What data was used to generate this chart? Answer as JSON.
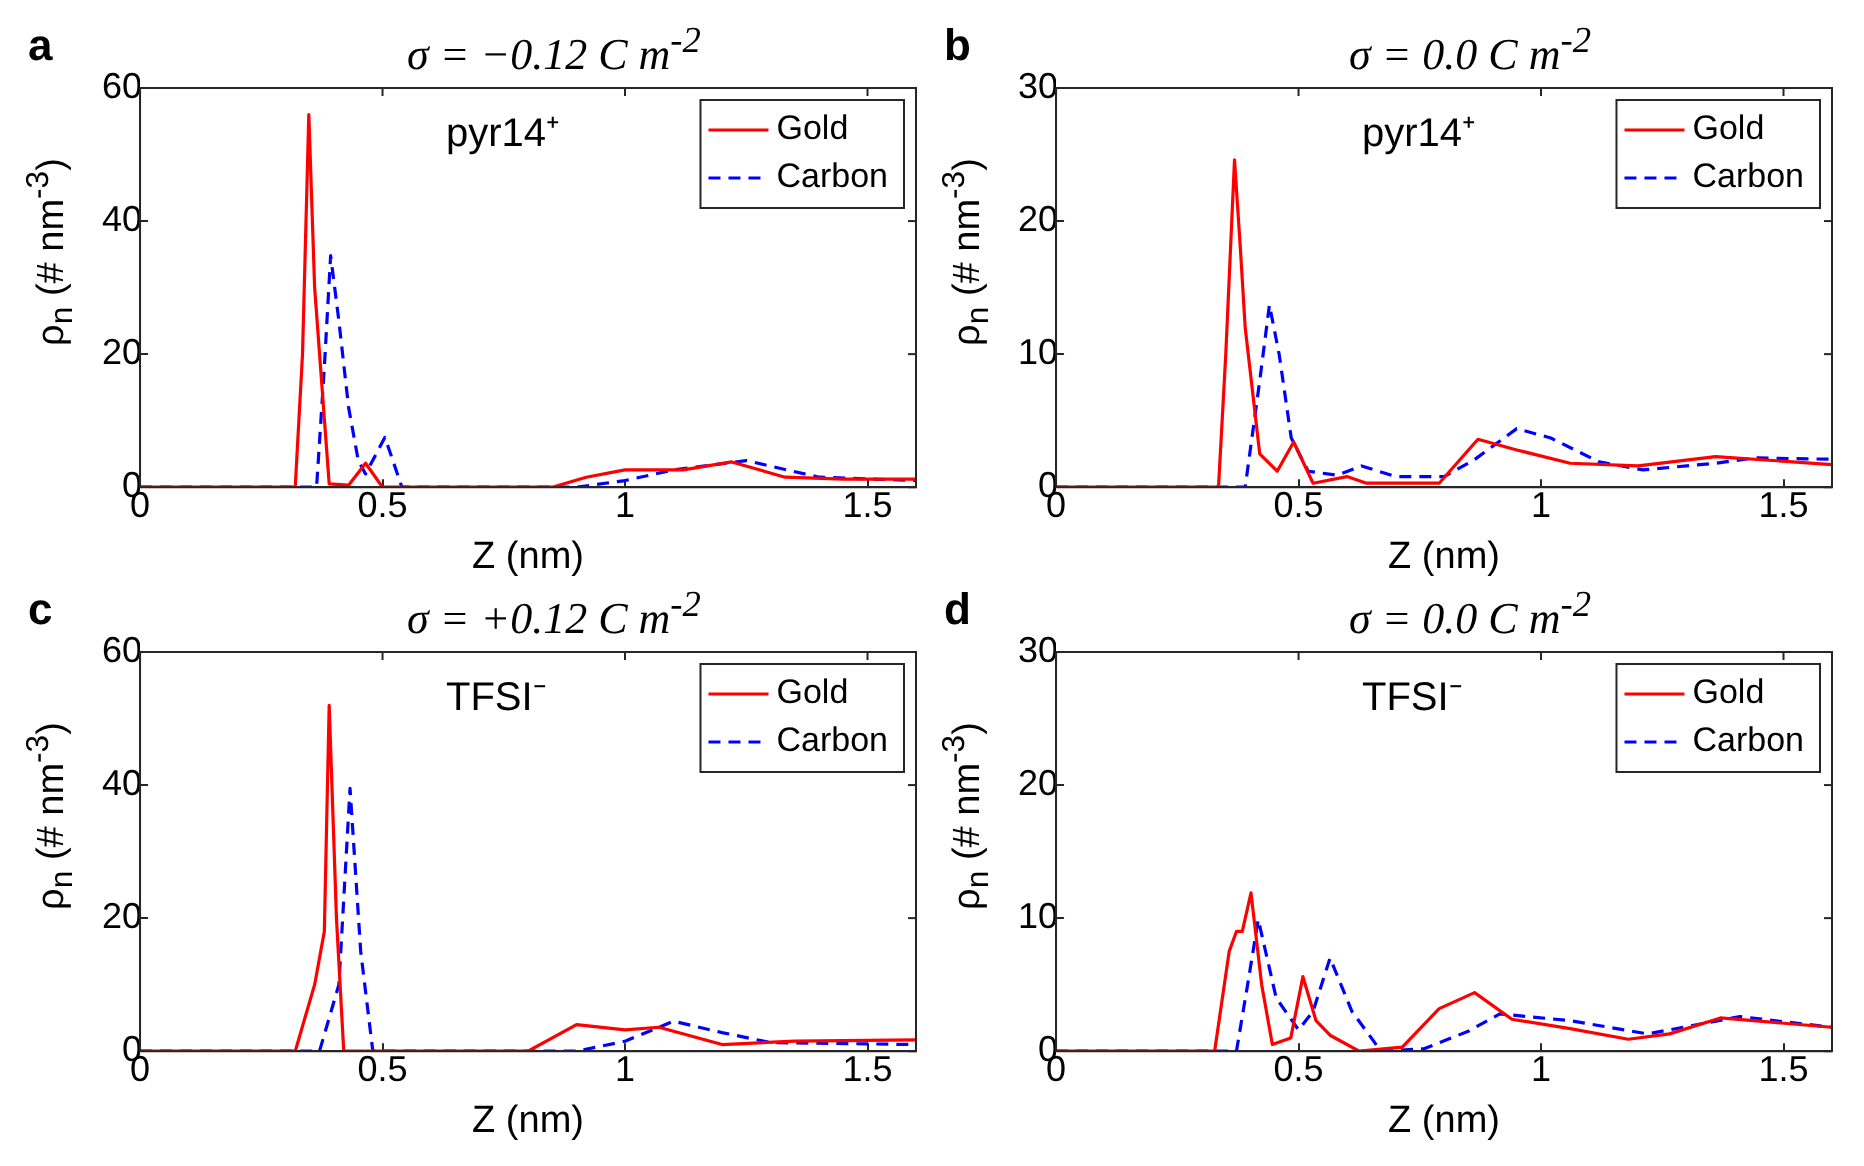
{
  "chart_data": [
    {
      "type": "line",
      "title": "σ = −0.12 C m$^{-2}$",
      "xlabel": "Z (nm)",
      "ylabel": "ρ$_{n}$ (# nm$^{-3}$)",
      "annotations": [
        "a",
        "pyr14⁺"
      ],
      "xlim": [
        0,
        1.6
      ],
      "ylim": [
        0,
        60
      ],
      "xticks": [
        0,
        0.5,
        1,
        1.5
      ],
      "yticks": [
        0,
        20,
        40,
        60
      ],
      "grid": false,
      "legend": "top right",
      "series": [
        {
          "name": "Gold",
          "color": "#ff0000",
          "line_style": "solid",
          "x": [
            0,
            0.32,
            0.335,
            0.348,
            0.36,
            0.39,
            0.43,
            0.465,
            0.5,
            0.85,
            0.92,
            1.0,
            1.12,
            1.22,
            1.33,
            1.45,
            1.6
          ],
          "values": [
            0,
            0,
            20,
            56,
            30,
            0.5,
            0.3,
            3.6,
            0,
            0,
            1.5,
            2.6,
            2.6,
            3.8,
            1.5,
            1.2,
            1.2
          ]
        },
        {
          "name": "Carbon",
          "color": "#0000ff",
          "line_style": "dashed",
          "x": [
            0,
            0.364,
            0.38,
            0.393,
            0.41,
            0.43,
            0.45,
            0.465,
            0.505,
            0.54,
            0.9,
            1.0,
            1.1,
            1.25,
            1.4,
            1.6
          ],
          "values": [
            0,
            0,
            18,
            34.8,
            25,
            12,
            4,
            2,
            7.5,
            0,
            0,
            1.0,
            2.6,
            4.0,
            1.5,
            1.0
          ]
        }
      ]
    },
    {
      "type": "line",
      "title": "σ = 0.0 C m$^{-2}$",
      "xlabel": "Z (nm)",
      "ylabel": "ρ$_{n}$ (# nm$^{-3}$)",
      "annotations": [
        "b",
        "pyr14⁺"
      ],
      "xlim": [
        0,
        1.6
      ],
      "ylim": [
        0,
        30
      ],
      "xticks": [
        0,
        0.5,
        1,
        1.5
      ],
      "yticks": [
        0,
        10,
        20,
        30
      ],
      "grid": false,
      "legend": "top right",
      "series": [
        {
          "name": "Gold",
          "color": "#ff0000",
          "line_style": "solid",
          "x": [
            0,
            0.335,
            0.35,
            0.368,
            0.38,
            0.39,
            0.42,
            0.456,
            0.49,
            0.53,
            0.6,
            0.64,
            0.79,
            0.87,
            0.95,
            1.06,
            1.2,
            1.36,
            1.6
          ],
          "values": [
            0,
            0,
            10,
            24.6,
            18,
            12,
            2.5,
            1.2,
            3.4,
            0.3,
            0.8,
            0.3,
            0.3,
            3.6,
            2.8,
            1.8,
            1.6,
            2.3,
            1.7
          ]
        },
        {
          "name": "Carbon",
          "color": "#0000ff",
          "line_style": "dashed",
          "x": [
            0,
            0.39,
            0.42,
            0.44,
            0.46,
            0.485,
            0.52,
            0.58,
            0.63,
            0.7,
            0.8,
            0.86,
            0.95,
            1.02,
            1.12,
            1.21,
            1.36,
            1.44,
            1.6
          ],
          "values": [
            0,
            0,
            8,
            13.7,
            10,
            3.7,
            1.2,
            0.9,
            1.6,
            0.8,
            0.8,
            2.0,
            4.4,
            3.7,
            1.9,
            1.3,
            1.8,
            2.2,
            2.1
          ]
        }
      ]
    },
    {
      "type": "line",
      "title": "σ = +0.12 C m$^{-2}$",
      "xlabel": "Z (nm)",
      "ylabel": "ρ$_{n}$ (# nm$^{-3}$)",
      "annotations": [
        "c",
        "TFSI⁻"
      ],
      "xlim": [
        0,
        1.6
      ],
      "ylim": [
        0,
        60
      ],
      "xticks": [
        0,
        0.5,
        1,
        1.5
      ],
      "yticks": [
        0,
        20,
        40,
        60
      ],
      "grid": false,
      "legend": "top right",
      "series": [
        {
          "name": "Gold",
          "color": "#ff0000",
          "line_style": "solid",
          "x": [
            0,
            0.32,
            0.36,
            0.38,
            0.39,
            0.405,
            0.42,
            0.8,
            0.9,
            1.0,
            1.07,
            1.2,
            1.35,
            1.6
          ],
          "values": [
            0,
            0,
            10,
            18,
            52,
            20,
            0,
            0,
            4,
            3.2,
            3.6,
            1.0,
            1.5,
            1.7
          ]
        },
        {
          "name": "Carbon",
          "color": "#0000ff",
          "line_style": "dashed",
          "x": [
            0,
            0.37,
            0.41,
            0.433,
            0.455,
            0.48,
            0.9,
            1.0,
            1.1,
            1.2,
            1.3,
            1.6
          ],
          "values": [
            0,
            0,
            10,
            39.5,
            15,
            0,
            0,
            1.5,
            4.5,
            2.8,
            1.3,
            1.0
          ]
        }
      ]
    },
    {
      "type": "line",
      "title": "σ = 0.0 C m$^{-2}$",
      "xlabel": "Z (nm)",
      "ylabel": "ρ$_{n}$ (# nm$^{-3}$)",
      "annotations": [
        "d",
        "TFSI⁻"
      ],
      "xlim": [
        0,
        1.6
      ],
      "ylim": [
        0,
        30
      ],
      "xticks": [
        0,
        0.5,
        1,
        1.5
      ],
      "yticks": [
        0,
        10,
        20,
        30
      ],
      "grid": false,
      "legend": "top right",
      "series": [
        {
          "name": "Gold",
          "color": "#ff0000",
          "line_style": "solid",
          "x": [
            0,
            0.327,
            0.357,
            0.372,
            0.384,
            0.402,
            0.424,
            0.446,
            0.484,
            0.509,
            0.536,
            0.565,
            0.625,
            0.714,
            0.79,
            0.863,
            0.94,
            1.06,
            1.18,
            1.265,
            1.37,
            1.6
          ],
          "values": [
            0,
            0,
            7.5,
            9,
            9,
            11.9,
            5,
            0.5,
            1.0,
            5.6,
            2.3,
            1.2,
            0,
            0.3,
            3.2,
            4.4,
            2.4,
            1.7,
            0.9,
            1.3,
            2.5,
            1.8
          ]
        },
        {
          "name": "Carbon",
          "color": "#0000ff",
          "line_style": "dashed",
          "x": [
            0,
            0.372,
            0.395,
            0.417,
            0.454,
            0.5,
            0.53,
            0.565,
            0.61,
            0.67,
            0.76,
            0.85,
            0.915,
            1.06,
            1.22,
            1.41,
            1.6
          ],
          "values": [
            0,
            0,
            5,
            9.9,
            4,
            1.6,
            3,
            7,
            3,
            0,
            0.2,
            1.5,
            2.8,
            2.3,
            1.3,
            2.6,
            1.8
          ]
        }
      ]
    }
  ]
}
